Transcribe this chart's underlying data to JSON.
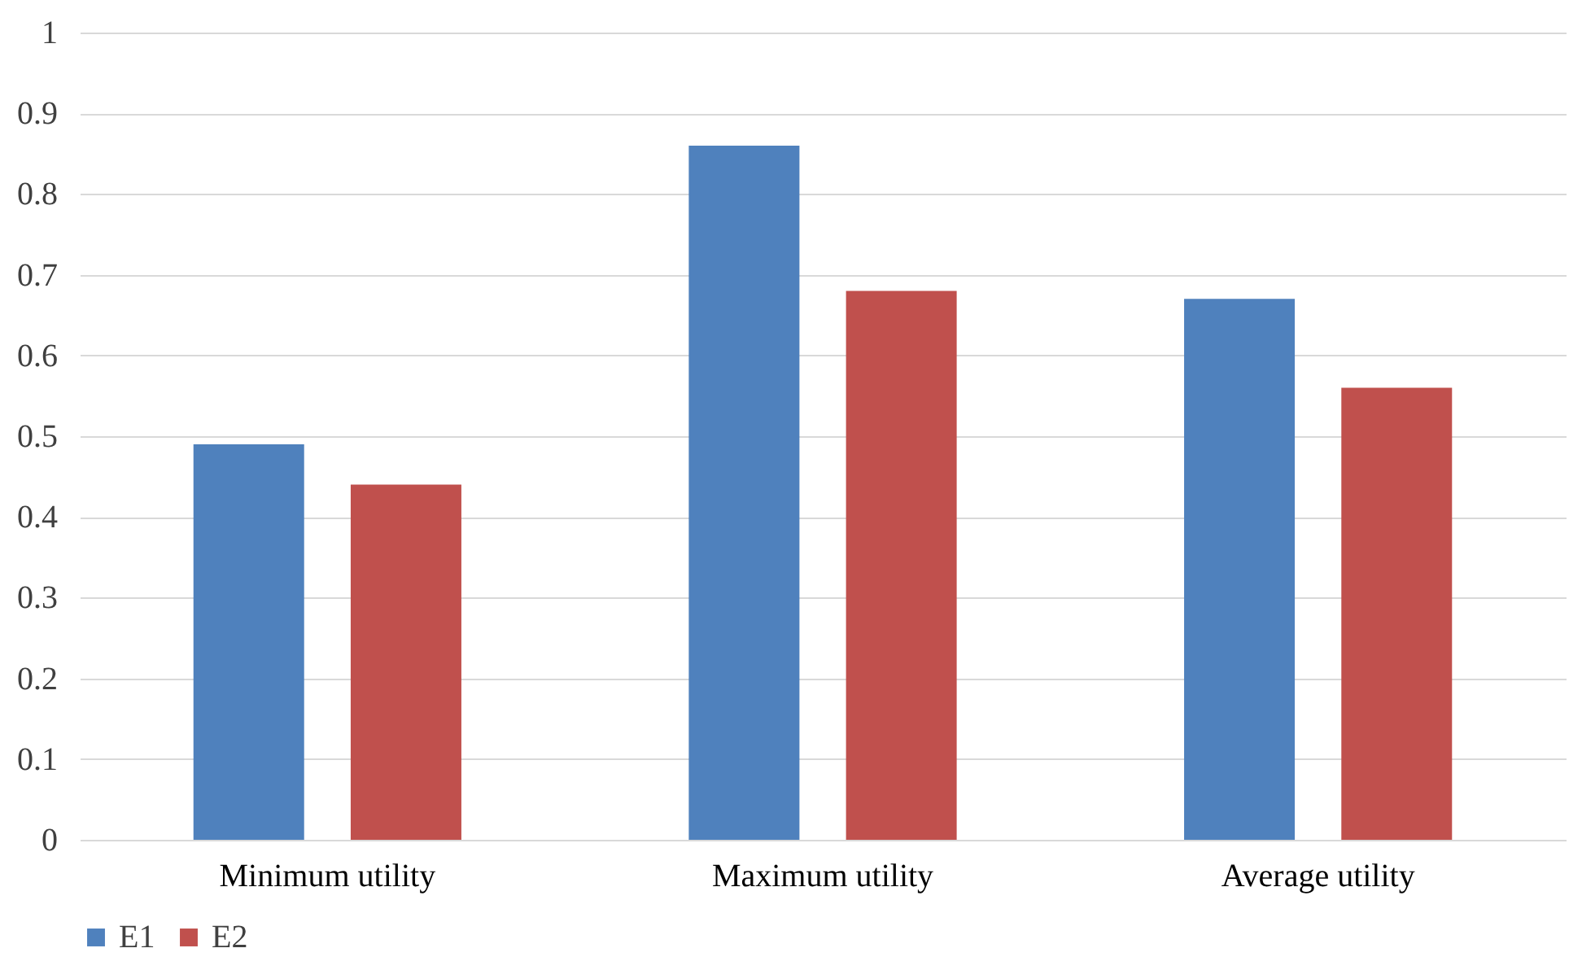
{
  "chart_data": {
    "type": "bar",
    "categories": [
      "Minimum utility",
      "Maximum utility",
      "Average utility"
    ],
    "series": [
      {
        "name": "E1",
        "color": "#4f81bd",
        "values": [
          0.49,
          0.86,
          0.67
        ]
      },
      {
        "name": "E2",
        "color": "#c0504d",
        "values": [
          0.44,
          0.68,
          0.56
        ]
      }
    ],
    "ylim": [
      0,
      1
    ],
    "yticks": [
      0,
      0.1,
      0.2,
      0.3,
      0.4,
      0.5,
      0.6,
      0.7,
      0.8,
      0.9,
      1
    ],
    "grid": "y",
    "legend": "bottom"
  }
}
